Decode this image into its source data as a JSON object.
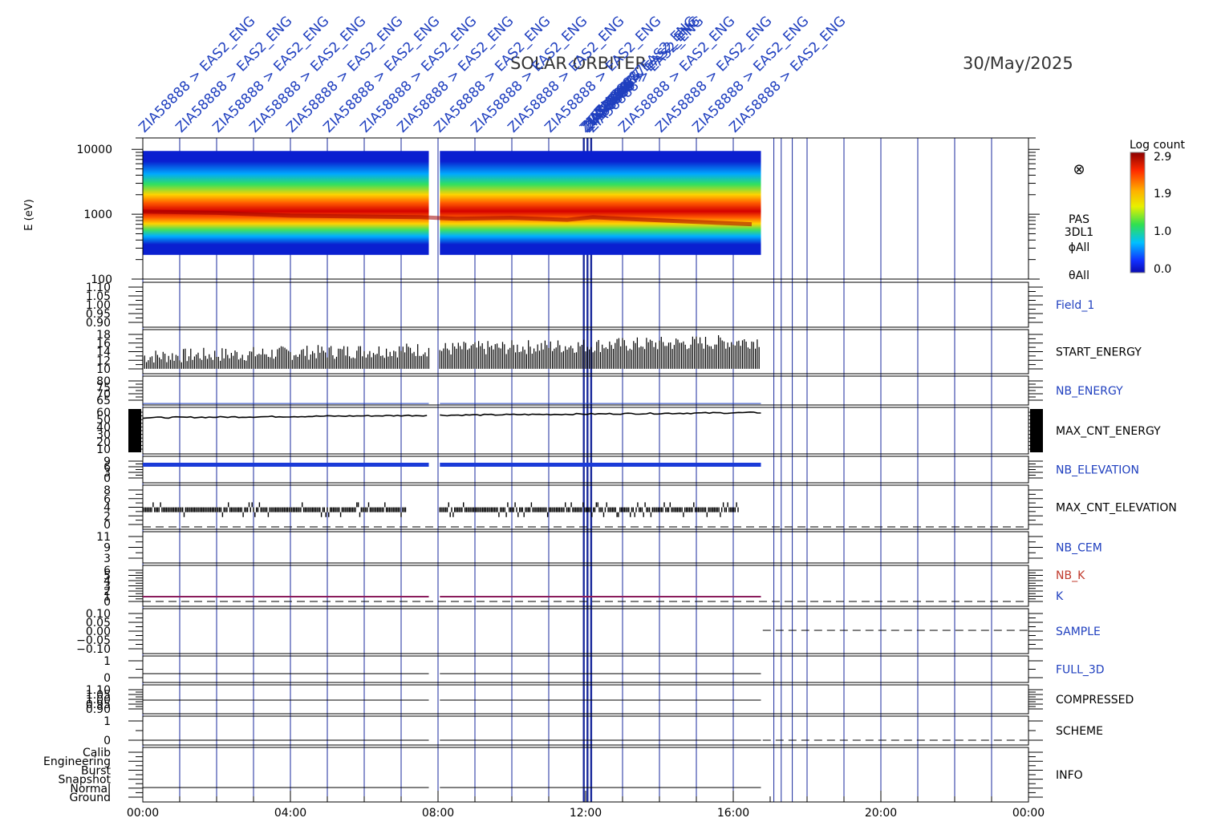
{
  "title": {
    "mission": "SOLAR  ORBITER",
    "date": "30/May/2025"
  },
  "colors": {
    "axis": "#000000",
    "marker_line": "#1a2a9c",
    "label_blue": "#1f3fbf",
    "label_red": "#c0392b",
    "nb_elevation": "#1b3bd8",
    "k_line": "#8a1c5c"
  },
  "event_label": "ZIA58888 > EAS2_ENG",
  "overlay_labels": [
    "ZIA58886",
    "ZIA58887",
    "ZIA58887",
    "ZIA58887",
    "ZIA58887"
  ],
  "colorbar": {
    "title": "Log count",
    "ticks": [
      "2.9",
      "1.9",
      "1.0",
      "0.0"
    ]
  },
  "spectrogram": {
    "ylabel": "E (eV)",
    "yticks": [
      "10000",
      "1000",
      "100"
    ],
    "side_labels": [
      "PAS",
      "3DL1",
      "ϕAll",
      "θAll"
    ],
    "symbol": "⊗"
  },
  "panels": [
    {
      "label": "Field_1",
      "color": "blue",
      "ticks": [
        "1.10",
        "1.05",
        "1.00",
        "0.95",
        "0.90"
      ]
    },
    {
      "label": "START_ENERGY",
      "color": "black",
      "ticks": [
        "18",
        "16",
        "14",
        "12",
        "10"
      ]
    },
    {
      "label": "NB_ENERGY",
      "color": "blue",
      "ticks": [
        "80",
        "75",
        "70",
        "65"
      ]
    },
    {
      "label": "MAX_CNT_ENERGY",
      "color": "black",
      "ticks": [
        "60",
        "50",
        "40",
        "30",
        "20",
        "10"
      ]
    },
    {
      "label": "NB_ELEVATION",
      "color": "blue",
      "ticks": [
        "9",
        "6",
        "3",
        "0"
      ]
    },
    {
      "label": "MAX_CNT_ELEVATION",
      "color": "black",
      "ticks": [
        "8",
        "6",
        "4",
        "2",
        "0"
      ]
    },
    {
      "label": "NB_CEM",
      "color": "blue",
      "ticks": [
        "11",
        "9",
        "3"
      ]
    },
    {
      "label": "NB_K",
      "color": "red",
      "ticks": [
        "6",
        "5",
        "4",
        "3",
        "2",
        "1",
        "0"
      ],
      "extra_label": "K"
    },
    {
      "label": "SAMPLE",
      "color": "blue",
      "ticks": [
        "0.10",
        "0.05",
        "0.00",
        "−0.05",
        "−0.10"
      ]
    },
    {
      "label": "FULL_3D",
      "color": "blue",
      "ticks": [
        "1",
        "0"
      ]
    },
    {
      "label": "COMPRESSED",
      "color": "black",
      "ticks": [
        "1.10",
        "1.05",
        "1.00",
        "0.95",
        "0.90"
      ]
    },
    {
      "label": "SCHEME",
      "color": "black",
      "ticks": [
        "1",
        "0"
      ]
    },
    {
      "label": "INFO",
      "color": "black",
      "ticks": [
        "Calib",
        "Engineering",
        "Burst",
        "Snapshot",
        "Normal",
        "Ground"
      ]
    }
  ],
  "x_axis": {
    "ticks": [
      "00:00",
      "04:00",
      "08:00",
      "12:00",
      "16:00",
      "20:00",
      "00:00"
    ]
  },
  "chart_data": {
    "type": "heatmap",
    "title": "SOLAR  ORBITER   30/May/2025",
    "xlabel": "",
    "ylabel": "E (eV)",
    "x_range_hours": [
      0,
      24
    ],
    "y_range_eV": [
      100,
      15000
    ],
    "y_scale": "log",
    "color_scale": {
      "label": "Log count",
      "range": [
        0.0,
        2.9
      ],
      "colormap": "rainbow"
    },
    "data_coverage_hours": [
      [
        0.0,
        7.75
      ],
      [
        8.05,
        16.75
      ]
    ],
    "peak_energy_eV": [
      {
        "t": 0,
        "e": 1100
      },
      {
        "t": 2,
        "e": 1050
      },
      {
        "t": 4,
        "e": 950
      },
      {
        "t": 6,
        "e": 920
      },
      {
        "t": 7.5,
        "e": 900
      },
      {
        "t": 8.5,
        "e": 850
      },
      {
        "t": 10,
        "e": 880
      },
      {
        "t": 11.5,
        "e": 820
      },
      {
        "t": 12.2,
        "e": 900
      },
      {
        "t": 13,
        "e": 850
      },
      {
        "t": 14.5,
        "e": 780
      },
      {
        "t": 16.5,
        "e": 700
      }
    ],
    "event_times_hours": [
      0.0,
      1.0,
      2.0,
      3.0,
      4.0,
      5.0,
      6.0,
      7.0,
      8.0,
      9.0,
      10.0,
      11.0,
      11.95,
      12.05,
      12.15,
      13.0,
      14.0,
      15.0,
      16.0,
      17.1,
      17.3,
      17.6,
      18.0,
      19.0,
      20.0,
      21.0,
      22.0,
      23.0
    ],
    "series": [
      {
        "name": "START_ENERGY",
        "y_range": [
          9,
          18
        ],
        "typical_value": 14
      },
      {
        "name": "NB_ENERGY",
        "y_range": [
          63,
          82
        ],
        "value": 64
      },
      {
        "name": "MAX_CNT_ENERGY",
        "y_range": [
          8,
          62
        ],
        "start_value": 50,
        "end_value": 56
      },
      {
        "name": "NB_ELEVATION",
        "y_range": [
          0,
          9
        ],
        "value": 9
      },
      {
        "name": "MAX_CNT_ELEVATION",
        "y_range": [
          0,
          9
        ],
        "typical_value": 4
      },
      {
        "name": "NB_K",
        "y_range": [
          0,
          6
        ],
        "value": 0.5
      }
    ]
  }
}
